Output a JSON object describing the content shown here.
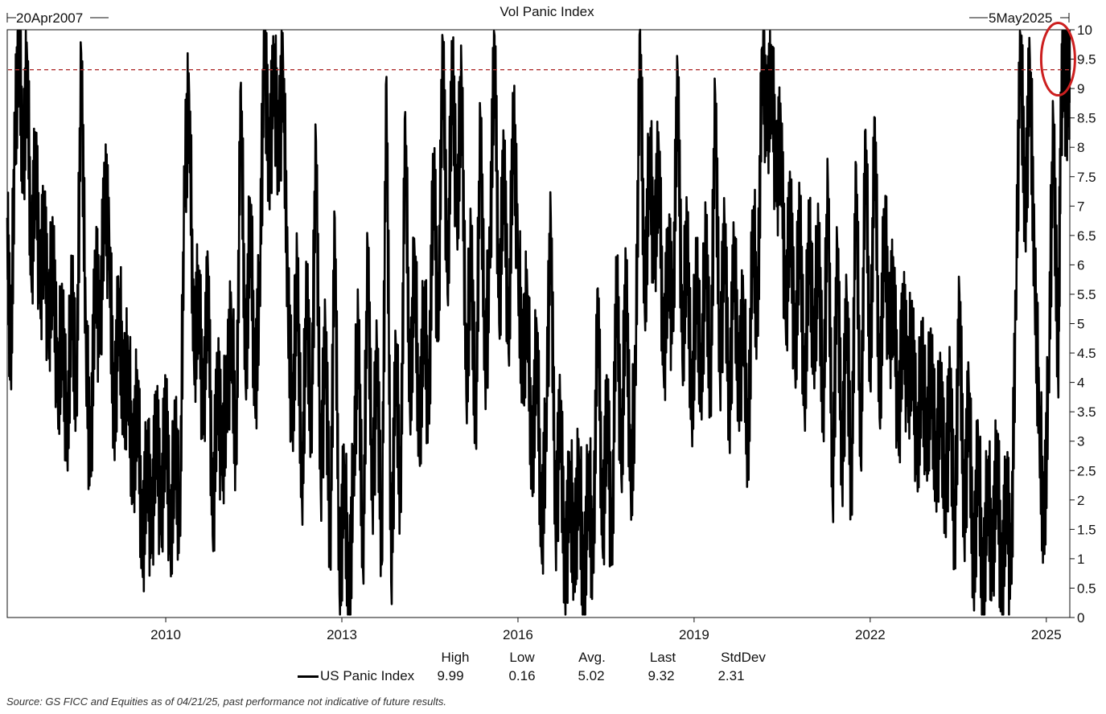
{
  "chart_data": {
    "type": "line",
    "title": "Vol Panic Index",
    "start_label": "20Apr2007",
    "end_label": "5May2025",
    "x_range": [
      2007.3,
      2025.4
    ],
    "x_ticks": [
      {
        "x": 2010.0,
        "label": "2010"
      },
      {
        "x": 2013.0,
        "label": "2013"
      },
      {
        "x": 2016.0,
        "label": "2016"
      },
      {
        "x": 2019.0,
        "label": "2019"
      },
      {
        "x": 2022.0,
        "label": "2022"
      },
      {
        "x": 2025.0,
        "label": "2025"
      }
    ],
    "ylim": [
      0,
      10
    ],
    "y_ticks": [
      "0",
      "0.5",
      "1",
      "1.5",
      "2",
      "2.5",
      "3",
      "3.5",
      "4",
      "4.5",
      "5",
      "5.5",
      "6",
      "6.5",
      "7",
      "7.5",
      "8",
      "8.5",
      "9",
      "9.5",
      "10"
    ],
    "reference_line": {
      "y": 9.32,
      "style": "dashed",
      "color": "#b03030"
    },
    "highlight": {
      "type": "ellipse",
      "x": 2025.2,
      "y": 9.5,
      "color": "#cc1f1f"
    },
    "series": [
      {
        "name": "US Panic Index",
        "color": "#000000",
        "points": [
          [
            2007.3,
            6.8
          ],
          [
            2007.36,
            4.2
          ],
          [
            2007.43,
            8.2
          ],
          [
            2007.5,
            9.9
          ],
          [
            2007.57,
            7.6
          ],
          [
            2007.64,
            9.5
          ],
          [
            2007.71,
            5.8
          ],
          [
            2007.78,
            7.9
          ],
          [
            2007.86,
            5.5
          ],
          [
            2007.93,
            6.7
          ],
          [
            2008.0,
            4.9
          ],
          [
            2008.08,
            6.2
          ],
          [
            2008.16,
            3.8
          ],
          [
            2008.24,
            5.0
          ],
          [
            2008.32,
            3.0
          ],
          [
            2008.4,
            5.6
          ],
          [
            2008.48,
            3.6
          ],
          [
            2008.56,
            9.6
          ],
          [
            2008.64,
            4.7
          ],
          [
            2008.72,
            2.5
          ],
          [
            2008.8,
            6.0
          ],
          [
            2008.88,
            4.8
          ],
          [
            2008.96,
            7.3
          ],
          [
            2009.04,
            6.3
          ],
          [
            2009.12,
            3.2
          ],
          [
            2009.2,
            5.4
          ],
          [
            2009.28,
            3.7
          ],
          [
            2009.36,
            4.3
          ],
          [
            2009.44,
            2.4
          ],
          [
            2009.52,
            3.9
          ],
          [
            2009.6,
            1.0
          ],
          [
            2009.68,
            2.8
          ],
          [
            2009.76,
            1.4
          ],
          [
            2009.84,
            3.4
          ],
          [
            2009.92,
            1.6
          ],
          [
            2010.0,
            3.6
          ],
          [
            2010.08,
            1.2
          ],
          [
            2010.16,
            3.1
          ],
          [
            2010.24,
            1.5
          ],
          [
            2010.32,
            7.5
          ],
          [
            2010.4,
            8.9
          ],
          [
            2010.48,
            4.4
          ],
          [
            2010.56,
            5.6
          ],
          [
            2010.64,
            3.3
          ],
          [
            2010.72,
            5.9
          ],
          [
            2010.8,
            1.4
          ],
          [
            2010.88,
            4.1
          ],
          [
            2010.96,
            2.7
          ],
          [
            2011.04,
            3.8
          ],
          [
            2011.12,
            5.0
          ],
          [
            2011.2,
            2.6
          ],
          [
            2011.28,
            9.1
          ],
          [
            2011.36,
            4.0
          ],
          [
            2011.44,
            7.0
          ],
          [
            2011.52,
            3.7
          ],
          [
            2011.6,
            5.7
          ],
          [
            2011.68,
            9.8
          ],
          [
            2011.76,
            7.6
          ],
          [
            2011.84,
            9.3
          ],
          [
            2011.92,
            7.9
          ],
          [
            2012.0,
            9.4
          ],
          [
            2012.08,
            5.4
          ],
          [
            2012.16,
            3.3
          ],
          [
            2012.24,
            6.0
          ],
          [
            2012.32,
            2.0
          ],
          [
            2012.4,
            5.6
          ],
          [
            2012.48,
            3.1
          ],
          [
            2012.56,
            8.1
          ],
          [
            2012.64,
            2.2
          ],
          [
            2012.72,
            4.9
          ],
          [
            2012.8,
            1.0
          ],
          [
            2012.88,
            6.8
          ],
          [
            2012.96,
            0.4
          ],
          [
            2013.04,
            2.5
          ],
          [
            2013.12,
            0.2
          ],
          [
            2013.2,
            2.6
          ],
          [
            2013.28,
            5.0
          ],
          [
            2013.36,
            0.8
          ],
          [
            2013.44,
            6.3
          ],
          [
            2013.52,
            2.0
          ],
          [
            2013.6,
            4.5
          ],
          [
            2013.68,
            0.9
          ],
          [
            2013.76,
            9.2
          ],
          [
            2013.84,
            0.6
          ],
          [
            2013.92,
            4.6
          ],
          [
            2014.0,
            1.8
          ],
          [
            2014.08,
            8.6
          ],
          [
            2014.16,
            3.5
          ],
          [
            2014.24,
            6.2
          ],
          [
            2014.32,
            2.9
          ],
          [
            2014.4,
            5.4
          ],
          [
            2014.48,
            3.3
          ],
          [
            2014.56,
            7.8
          ],
          [
            2014.64,
            4.7
          ],
          [
            2014.72,
            9.8
          ],
          [
            2014.8,
            5.5
          ],
          [
            2014.88,
            9.5
          ],
          [
            2014.96,
            6.7
          ],
          [
            2015.04,
            9.2
          ],
          [
            2015.12,
            3.8
          ],
          [
            2015.2,
            6.4
          ],
          [
            2015.28,
            3.1
          ],
          [
            2015.36,
            8.5
          ],
          [
            2015.44,
            4.2
          ],
          [
            2015.52,
            6.0
          ],
          [
            2015.6,
            9.9
          ],
          [
            2015.68,
            5.0
          ],
          [
            2015.76,
            7.9
          ],
          [
            2015.84,
            4.5
          ],
          [
            2015.92,
            8.6
          ],
          [
            2016.0,
            6.1
          ],
          [
            2016.08,
            4.2
          ],
          [
            2016.16,
            5.5
          ],
          [
            2016.24,
            2.4
          ],
          [
            2016.32,
            4.9
          ],
          [
            2016.4,
            1.2
          ],
          [
            2016.48,
            3.3
          ],
          [
            2016.56,
            6.8
          ],
          [
            2016.64,
            1.4
          ],
          [
            2016.72,
            3.6
          ],
          [
            2016.8,
            0.6
          ],
          [
            2016.88,
            2.3
          ],
          [
            2016.96,
            1.0
          ],
          [
            2017.04,
            2.6
          ],
          [
            2017.12,
            0.3
          ],
          [
            2017.2,
            2.5
          ],
          [
            2017.28,
            0.8
          ],
          [
            2017.36,
            5.6
          ],
          [
            2017.44,
            1.2
          ],
          [
            2017.52,
            3.8
          ],
          [
            2017.6,
            0.9
          ],
          [
            2017.68,
            6.0
          ],
          [
            2017.76,
            2.4
          ],
          [
            2017.84,
            5.9
          ],
          [
            2017.92,
            2.2
          ],
          [
            2018.0,
            4.0
          ],
          [
            2018.08,
            10.0
          ],
          [
            2018.16,
            5.2
          ],
          [
            2018.24,
            8.0
          ],
          [
            2018.32,
            6.1
          ],
          [
            2018.4,
            7.9
          ],
          [
            2018.48,
            4.2
          ],
          [
            2018.56,
            6.2
          ],
          [
            2018.64,
            5.0
          ],
          [
            2018.72,
            9.3
          ],
          [
            2018.8,
            4.4
          ],
          [
            2018.88,
            6.6
          ],
          [
            2018.96,
            3.4
          ],
          [
            2019.04,
            5.9
          ],
          [
            2019.12,
            3.9
          ],
          [
            2019.2,
            6.5
          ],
          [
            2019.28,
            3.7
          ],
          [
            2019.36,
            8.9
          ],
          [
            2019.44,
            4.1
          ],
          [
            2019.52,
            6.6
          ],
          [
            2019.6,
            3.3
          ],
          [
            2019.68,
            6.3
          ],
          [
            2019.76,
            3.8
          ],
          [
            2019.84,
            5.3
          ],
          [
            2019.92,
            2.6
          ],
          [
            2020.0,
            6.8
          ],
          [
            2020.08,
            4.9
          ],
          [
            2020.16,
            9.7
          ],
          [
            2020.24,
            8.4
          ],
          [
            2020.32,
            9.3
          ],
          [
            2020.4,
            7.4
          ],
          [
            2020.48,
            8.2
          ],
          [
            2020.56,
            5.0
          ],
          [
            2020.64,
            7.1
          ],
          [
            2020.72,
            4.3
          ],
          [
            2020.8,
            6.9
          ],
          [
            2020.88,
            3.6
          ],
          [
            2020.96,
            6.6
          ],
          [
            2021.04,
            4.5
          ],
          [
            2021.12,
            6.4
          ],
          [
            2021.2,
            3.4
          ],
          [
            2021.28,
            7.4
          ],
          [
            2021.36,
            2.0
          ],
          [
            2021.44,
            6.3
          ],
          [
            2021.52,
            2.4
          ],
          [
            2021.6,
            5.4
          ],
          [
            2021.68,
            1.9
          ],
          [
            2021.76,
            7.7
          ],
          [
            2021.84,
            2.6
          ],
          [
            2021.92,
            8.3
          ],
          [
            2022.0,
            4.0
          ],
          [
            2022.08,
            8.5
          ],
          [
            2022.16,
            3.4
          ],
          [
            2022.24,
            6.8
          ],
          [
            2022.32,
            4.8
          ],
          [
            2022.4,
            5.6
          ],
          [
            2022.48,
            3.1
          ],
          [
            2022.56,
            5.2
          ],
          [
            2022.64,
            3.9
          ],
          [
            2022.72,
            4.7
          ],
          [
            2022.8,
            2.7
          ],
          [
            2022.88,
            4.4
          ],
          [
            2022.96,
            3.0
          ],
          [
            2023.04,
            4.2
          ],
          [
            2023.12,
            2.5
          ],
          [
            2023.2,
            3.8
          ],
          [
            2023.28,
            2.0
          ],
          [
            2023.36,
            4.0
          ],
          [
            2023.44,
            1.2
          ],
          [
            2023.52,
            5.5
          ],
          [
            2023.6,
            1.5
          ],
          [
            2023.68,
            3.9
          ],
          [
            2023.76,
            0.6
          ],
          [
            2023.84,
            3.0
          ],
          [
            2023.92,
            0.2
          ],
          [
            2024.0,
            2.4
          ],
          [
            2024.08,
            0.8
          ],
          [
            2024.16,
            2.9
          ],
          [
            2024.24,
            0.3
          ],
          [
            2024.32,
            2.3
          ],
          [
            2024.4,
            0.6
          ],
          [
            2024.48,
            5.4
          ],
          [
            2024.56,
            9.9
          ],
          [
            2024.64,
            6.7
          ],
          [
            2024.72,
            9.5
          ],
          [
            2024.8,
            5.8
          ],
          [
            2024.88,
            3.4
          ],
          [
            2024.96,
            1.4
          ],
          [
            2025.04,
            4.2
          ],
          [
            2025.12,
            8.4
          ],
          [
            2025.2,
            4.1
          ],
          [
            2025.25,
            8.6
          ],
          [
            2025.3,
            9.9
          ],
          [
            2025.34,
            8.6
          ],
          [
            2025.38,
            9.6
          ],
          [
            2025.4,
            9.32
          ]
        ]
      }
    ],
    "stats": {
      "headers": [
        "High",
        "Low",
        "Avg.",
        "Last",
        "StdDev"
      ],
      "values": [
        "9.99",
        "0.16",
        "5.02",
        "9.32",
        "2.31"
      ]
    },
    "source": "Source: GS FICC and Equities as of 04/21/25, past performance not indicative of future results."
  }
}
